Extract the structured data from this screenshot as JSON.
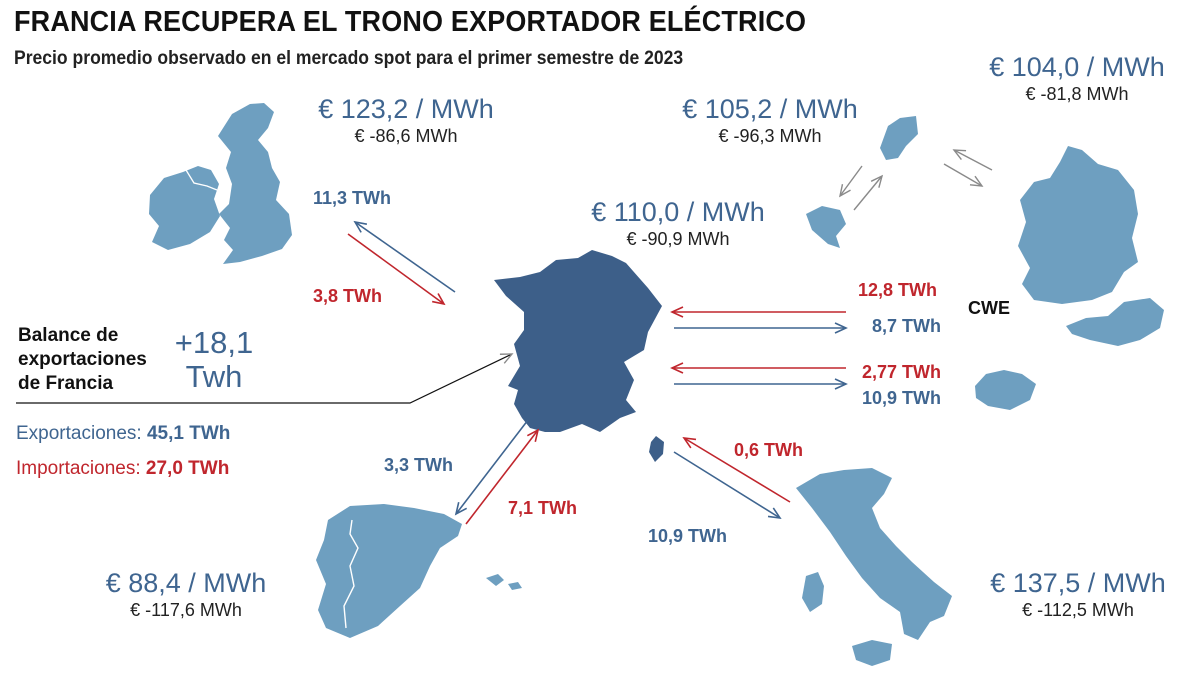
{
  "header": {
    "title": "FRANCIA RECUPERA EL TRONO EXPORTADOR ELÉCTRICO",
    "subtitle": "Precio promedio observado en el mercado spot para el primer semestre de 2023"
  },
  "countries": {
    "uk": {
      "price": "€ 123,2 / MWh",
      "delta": "€ -86,6 MWh"
    },
    "benelux": {
      "price": "€ 105,2 / MWh",
      "delta": "€ -96,3 MWh"
    },
    "germany": {
      "price": "€ 104,0 / MWh",
      "delta": "€ -81,8 MWh"
    },
    "france": {
      "price": "€ 110,0 / MWh",
      "delta": "€ -90,9 MWh"
    },
    "spain": {
      "price": "€ 88,4 / MWh",
      "delta": "€ -117,6 MWh"
    },
    "italy": {
      "price": "€ 137,5 / MWh",
      "delta": "€ -112,5 MWh"
    }
  },
  "flows": {
    "uk_export": "11,3 TWh",
    "uk_import": "3,8 TWh",
    "cwe_import": "12,8 TWh",
    "cwe_export": "8,7 TWh",
    "swiss_import": "2,77 TWh",
    "swiss_export": "10,9 TWh",
    "spain_export": "3,3 TWh",
    "spain_import": "7,1 TWh",
    "italy_import": "0,6 TWh",
    "italy_export": "10,9 TWh"
  },
  "cwe_label": "CWE",
  "balance": {
    "label": "Balance de exportaciones de Francia",
    "value": "+18,1 Twh",
    "exports_label": "Exportaciones:",
    "exports_value": "45,1 TWh",
    "imports_label": "Importaciones:",
    "imports_value": "27,0 TWh"
  },
  "colors": {
    "france": "#3d5f89",
    "neighbors": "#6e9fc0",
    "export": "#3f6590",
    "import": "#c0262d",
    "connector_grey": "#8a8a8a"
  }
}
